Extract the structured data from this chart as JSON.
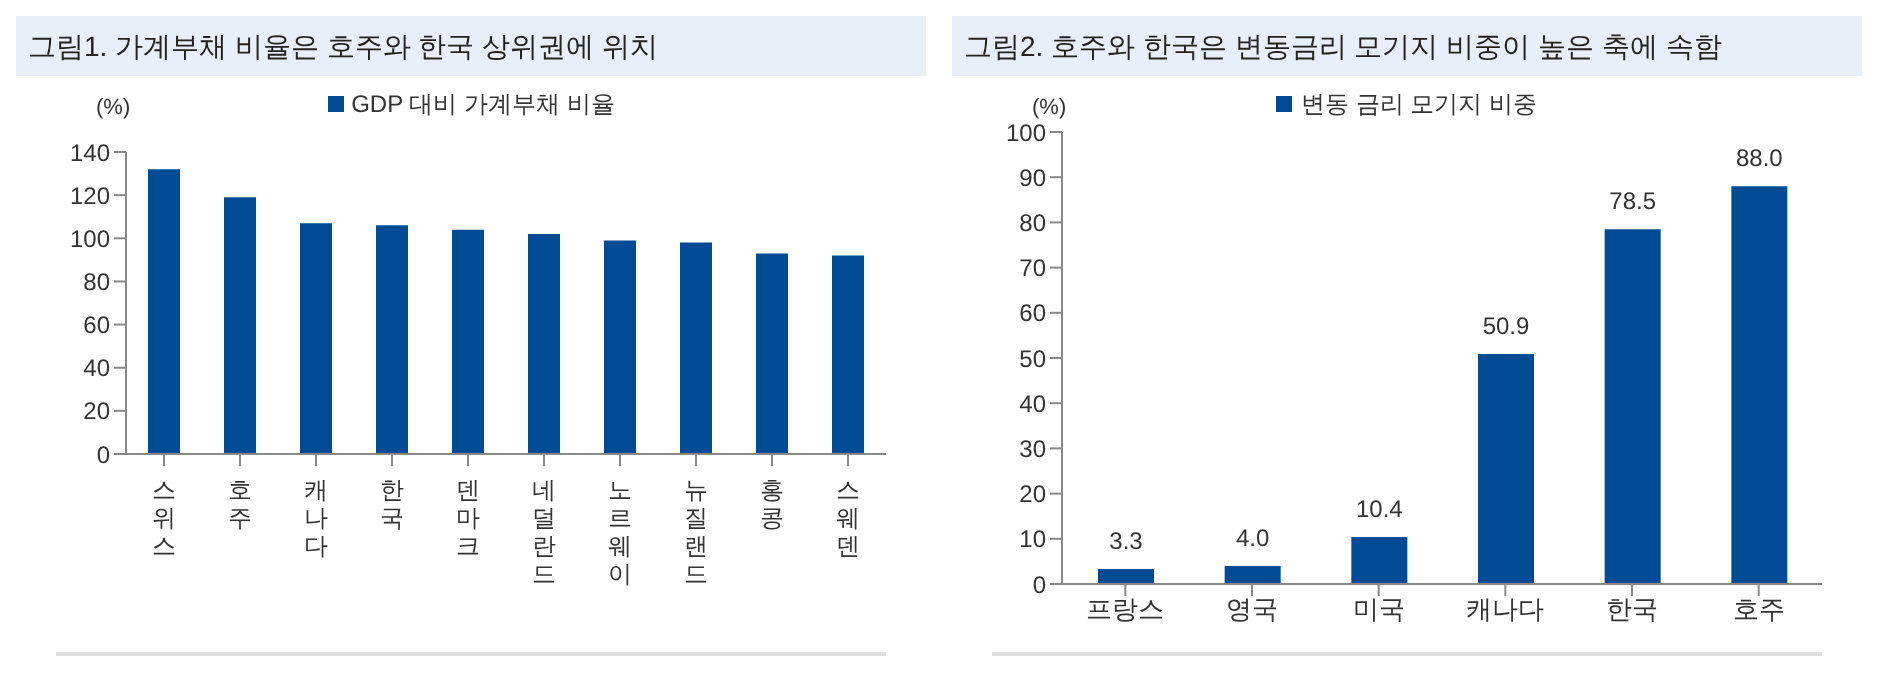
{
  "chart_data": [
    {
      "type": "bar",
      "title": "그림1. 가계부채 비율은 호주와 한국 상위권에 위치",
      "ylabel": "(%)",
      "categories": [
        "스위스",
        "호주",
        "캐나다",
        "한국",
        "덴마크",
        "네덜란드",
        "노르웨이",
        "뉴질랜드",
        "홍콩",
        "스웨덴"
      ],
      "series": [
        {
          "name": "GDP 대비 가계부채 비율",
          "color": "#004b93",
          "values": [
            132,
            119,
            107,
            106,
            104,
            102,
            99,
            98,
            93,
            92
          ]
        }
      ],
      "ylim": [
        0,
        140
      ],
      "yticks": [
        0,
        20,
        40,
        60,
        80,
        100,
        120,
        140
      ],
      "legend": "top",
      "grid": false
    },
    {
      "type": "bar",
      "title": "그림2. 호주와 한국은 변동금리 모기지 비중이 높은 축에 속함",
      "ylabel": "(%)",
      "categories": [
        "프랑스",
        "영국",
        "미국",
        "캐나다",
        "한국",
        "호주"
      ],
      "series": [
        {
          "name": "변동 금리 모기지 비중",
          "color": "#004b93",
          "values": [
            3.3,
            4.0,
            10.4,
            50.9,
            78.5,
            88.0
          ]
        }
      ],
      "value_labels": [
        "3.3",
        "4.0",
        "10.4",
        "50.9",
        "78.5",
        "88.0"
      ],
      "ylim": [
        0,
        100
      ],
      "yticks": [
        0,
        10,
        20,
        30,
        40,
        50,
        60,
        70,
        80,
        90,
        100
      ],
      "legend": "top",
      "grid": false
    }
  ]
}
